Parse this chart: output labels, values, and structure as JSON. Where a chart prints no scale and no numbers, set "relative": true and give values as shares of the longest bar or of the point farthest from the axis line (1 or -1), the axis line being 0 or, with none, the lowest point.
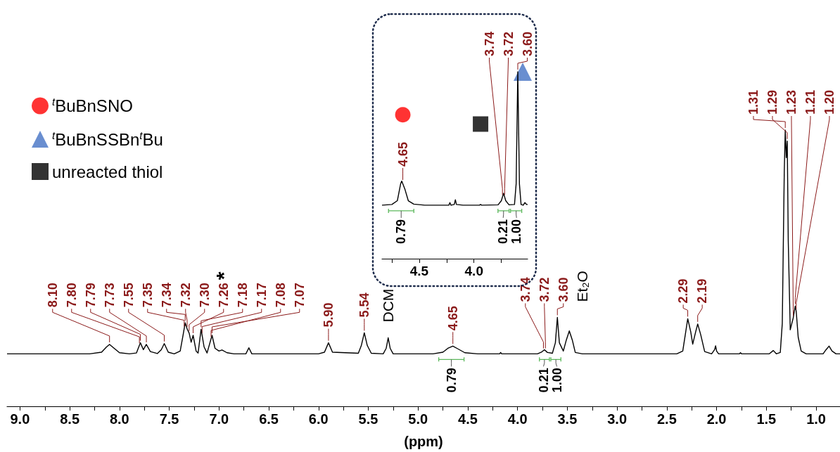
{
  "chart_data": [
    {
      "type": "line",
      "xlabel": "(ppm)",
      "xlim": [
        9.13,
        0.76
      ],
      "relative": true,
      "marker": "none",
      "xticks": [
        {
          "value": 9,
          "label": "9.0"
        },
        {
          "value": 8.75,
          "label": null
        },
        {
          "value": 8.5,
          "label": "8.5"
        },
        {
          "value": 8.25,
          "label": null
        },
        {
          "value": 8,
          "label": "8.0"
        },
        {
          "value": 7.75,
          "label": null
        },
        {
          "value": 7.5,
          "label": "7.5"
        },
        {
          "value": 7.25,
          "label": null
        },
        {
          "value": 7,
          "label": "7.0"
        },
        {
          "value": 6.75,
          "label": null
        },
        {
          "value": 6.5,
          "label": "6.5"
        },
        {
          "value": 6.25,
          "label": null
        },
        {
          "value": 6,
          "label": "6.0"
        },
        {
          "value": 5.75,
          "label": null
        },
        {
          "value": 5.5,
          "label": "5.5"
        },
        {
          "value": 5.25,
          "label": null
        },
        {
          "value": 5,
          "label": "5.0"
        },
        {
          "value": 4.75,
          "label": null
        },
        {
          "value": 4.5,
          "label": "4.5"
        },
        {
          "value": 4.25,
          "label": null
        },
        {
          "value": 4,
          "label": "4.0"
        },
        {
          "value": 3.75,
          "label": null
        },
        {
          "value": 3.5,
          "label": "3.5"
        },
        {
          "value": 3.25,
          "label": null
        },
        {
          "value": 3,
          "label": "3.0"
        },
        {
          "value": 2.75,
          "label": null
        },
        {
          "value": 2.5,
          "label": "2.5"
        },
        {
          "value": 2.25,
          "label": null
        },
        {
          "value": 2,
          "label": "2.0"
        },
        {
          "value": 1.75,
          "label": null
        },
        {
          "value": 1.5,
          "label": "1.5"
        },
        {
          "value": 1.25,
          "label": null
        },
        {
          "value": 1,
          "label": "1.0"
        }
      ],
      "series": [
        {
          "color": "#000000",
          "x": [
            9.13,
            8.3,
            8.18,
            8.13,
            8.1,
            8.06,
            8.0,
            7.9,
            7.83,
            7.79,
            7.76,
            7.73,
            7.69,
            7.62,
            7.58,
            7.55,
            7.51,
            7.45,
            7.39,
            7.36,
            7.34,
            7.32,
            7.3,
            7.28,
            7.26,
            7.23,
            7.21,
            7.18,
            7.15,
            7.12,
            7.07,
            7.04,
            7.0,
            6.97,
            6.92,
            6.85,
            6.73,
            6.7,
            6.67,
            6.0,
            5.94,
            5.9,
            5.86,
            5.6,
            5.57,
            5.54,
            5.51,
            5.47,
            5.35,
            5.32,
            5.3,
            5.28,
            5.25,
            4.85,
            4.75,
            4.7,
            4.65,
            4.6,
            4.53,
            4.4,
            4.18,
            4.17,
            4.16,
            3.8,
            3.76,
            3.73,
            3.7,
            3.65,
            3.62,
            3.6,
            3.58,
            3.54,
            3.51,
            3.48,
            3.45,
            3.42,
            3.35,
            2.4,
            2.34,
            2.31,
            2.29,
            2.26,
            2.24,
            2.21,
            2.19,
            2.16,
            2.12,
            2.05,
            2.02,
            2.01,
            2.0,
            1.98,
            1.77,
            1.76,
            1.75,
            1.47,
            1.43,
            1.4,
            1.36,
            1.34,
            1.32,
            1.31,
            1.3,
            1.29,
            1.28,
            1.26,
            1.23,
            1.21,
            1.2,
            1.18,
            1.15,
            1.1,
            0.93,
            0.9,
            0.87,
            0.84,
            0.8,
            0.76
          ],
          "values": [
            0.19,
            0.19,
            0.196,
            0.215,
            0.224,
            0.212,
            0.194,
            0.19,
            0.193,
            0.23,
            0.205,
            0.224,
            0.198,
            0.191,
            0.205,
            0.227,
            0.196,
            0.19,
            0.2,
            0.26,
            0.302,
            0.28,
            0.265,
            0.232,
            0.257,
            0.2,
            0.193,
            0.279,
            0.215,
            0.193,
            0.257,
            0.21,
            0.2,
            0.204,
            0.194,
            0.19,
            0.19,
            0.212,
            0.19,
            0.19,
            0.196,
            0.23,
            0.196,
            0.192,
            0.22,
            0.266,
            0.22,
            0.192,
            0.19,
            0.21,
            0.248,
            0.21,
            0.19,
            0.19,
            0.196,
            0.21,
            0.218,
            0.208,
            0.194,
            0.19,
            0.19,
            0.195,
            0.19,
            0.19,
            0.196,
            0.205,
            0.195,
            0.192,
            0.23,
            0.322,
            0.23,
            0.2,
            0.24,
            0.273,
            0.24,
            0.195,
            0.19,
            0.19,
            0.2,
            0.27,
            0.317,
            0.27,
            0.225,
            0.27,
            0.298,
            0.26,
            0.198,
            0.19,
            0.205,
            0.219,
            0.2,
            0.19,
            0.19,
            0.194,
            0.19,
            0.19,
            0.202,
            0.19,
            0.195,
            0.3,
            0.85,
            1,
            0.9,
            0.96,
            0.6,
            0.277,
            0.32,
            0.363,
            0.344,
            0.25,
            0.2,
            0.19,
            0.19,
            0.205,
            0.218,
            0.2,
            0.19,
            0.19
          ]
        }
      ],
      "annotations": [
        {
          "text": "0.79",
          "x": 4.665,
          "y": 0.216
        },
        {
          "text": "0.21",
          "x": 3.73,
          "y": 0.205
        },
        {
          "text": "1.00",
          "x": 3.615,
          "y": 0.25
        },
        {
          "text": "8.10",
          "x": 8.1,
          "y": 0.224
        },
        {
          "text": "7.80",
          "x": 7.8,
          "y": 0.221
        },
        {
          "text": "7.79",
          "x": 7.79,
          "y": 0.23
        },
        {
          "text": "7.73",
          "x": 7.73,
          "y": 0.224
        },
        {
          "text": "7.55",
          "x": 7.55,
          "y": 0.227
        },
        {
          "text": "7.35",
          "x": 7.35,
          "y": 0.281
        },
        {
          "text": "7.34",
          "x": 7.34,
          "y": 0.302
        },
        {
          "text": "7.32",
          "x": 7.32,
          "y": 0.28
        },
        {
          "text": "7.30",
          "x": 7.3,
          "y": 0.265
        },
        {
          "text": "7.26",
          "x": 7.26,
          "y": 0.257
        },
        {
          "text": "*",
          "x": 7.26,
          "y": 0.257
        },
        {
          "text": "7.18",
          "x": 7.18,
          "y": 0.279
        },
        {
          "text": "7.17",
          "x": 7.17,
          "y": 0.258
        },
        {
          "text": "7.08",
          "x": 7.08,
          "y": 0.244
        },
        {
          "text": "7.07",
          "x": 7.07,
          "y": 0.257
        },
        {
          "text": "5.90",
          "x": 5.9,
          "y": 0.23
        },
        {
          "text": "5.54",
          "x": 5.54,
          "y": 0.266
        },
        {
          "text": "DCM",
          "x": 5.3,
          "y": 0.248
        },
        {
          "text": "4.65",
          "x": 4.65,
          "y": 0.218
        },
        {
          "text": "3.74",
          "x": 3.74,
          "y": 0.202
        },
        {
          "text": "3.72",
          "x": 3.72,
          "y": 0.202
        },
        {
          "text": "3.60",
          "x": 3.6,
          "y": 0.322
        },
        {
          "text": "Et₂O",
          "x": 3.48,
          "y": 0.273
        },
        {
          "text": "2.29",
          "x": 2.29,
          "y": 0.317
        },
        {
          "text": "2.19",
          "x": 2.19,
          "y": 0.298
        },
        {
          "text": "1.31",
          "x": 1.31,
          "y": 1
        },
        {
          "text": "1.29",
          "x": 1.29,
          "y": 0.96
        },
        {
          "text": "1.23",
          "x": 1.23,
          "y": 0.32
        },
        {
          "text": "1.21",
          "x": 1.21,
          "y": 0.363
        },
        {
          "text": "1.20",
          "x": 1.2,
          "y": 0.344
        }
      ]
    },
    {
      "type": "line",
      "xlim": [
        4.84,
        3.51
      ],
      "relative": true,
      "marker": "none",
      "legend": "left",
      "xticks": [
        {
          "value": 4.75,
          "label": null
        },
        {
          "value": 4.5,
          "label": "4.5"
        },
        {
          "value": 4.25,
          "label": null
        },
        {
          "value": 4,
          "label": "4.0"
        },
        {
          "value": 3.75,
          "label": null
        }
      ],
      "series": [
        {
          "color": "#000000",
          "x": [
            4.84,
            4.75,
            4.7,
            4.67,
            4.66,
            4.63,
            4.6,
            4.55,
            4.45,
            4.23,
            4.22,
            4.21,
            4.18,
            4.17,
            4.16,
            4.1,
            3.95,
            3.94,
            3.93,
            3.78,
            3.75,
            3.73,
            3.71,
            3.68,
            3.63,
            3.615,
            3.6,
            3.585,
            3.57,
            3.55,
            3.535,
            3.52,
            3.51
          ],
          "values": [
            0.286,
            0.29,
            0.31,
            0.4,
            0.415,
            0.37,
            0.31,
            0.292,
            0.286,
            0.286,
            0.3,
            0.286,
            0.29,
            0.315,
            0.29,
            0.286,
            0.286,
            0.29,
            0.286,
            0.288,
            0.31,
            0.35,
            0.31,
            0.288,
            0.29,
            0.4,
            1,
            0.4,
            0.29,
            0.286,
            0.3,
            0.29,
            0.29
          ]
        },
        {
          "name": "$^{t}$BuBnSNO",
          "type": "scatter",
          "marker": "circle",
          "color": "#ff0000",
          "x": [
            4.65
          ],
          "values": [
            0.77
          ]
        },
        {
          "name": "$^{t}$BuBnSSBn$^{t}$Bu",
          "type": "scatter",
          "marker": "triangle",
          "color": "#4472c4",
          "x": [
            3.555
          ],
          "values": [
            1
          ]
        },
        {
          "name": "unreacted thiol",
          "type": "scatter",
          "marker": "square",
          "color": "#000000",
          "x": [
            3.94
          ],
          "values": [
            0.72
          ]
        }
      ],
      "annotations": [
        {
          "text": "0.79",
          "x": 4.665,
          "y": 0.408
        },
        {
          "text": "0.21",
          "x": 3.73,
          "y": 0.35
        },
        {
          "text": "1.00",
          "x": 3.615,
          "y": 0.4
        },
        {
          "text": "4.65",
          "x": 4.65,
          "y": 0.41
        },
        {
          "text": "3.74",
          "x": 3.74,
          "y": 0.33
        },
        {
          "text": "3.72",
          "x": 3.72,
          "y": 0.33
        },
        {
          "text": "3.60",
          "x": 3.6,
          "y": 1
        }
      ]
    }
  ]
}
